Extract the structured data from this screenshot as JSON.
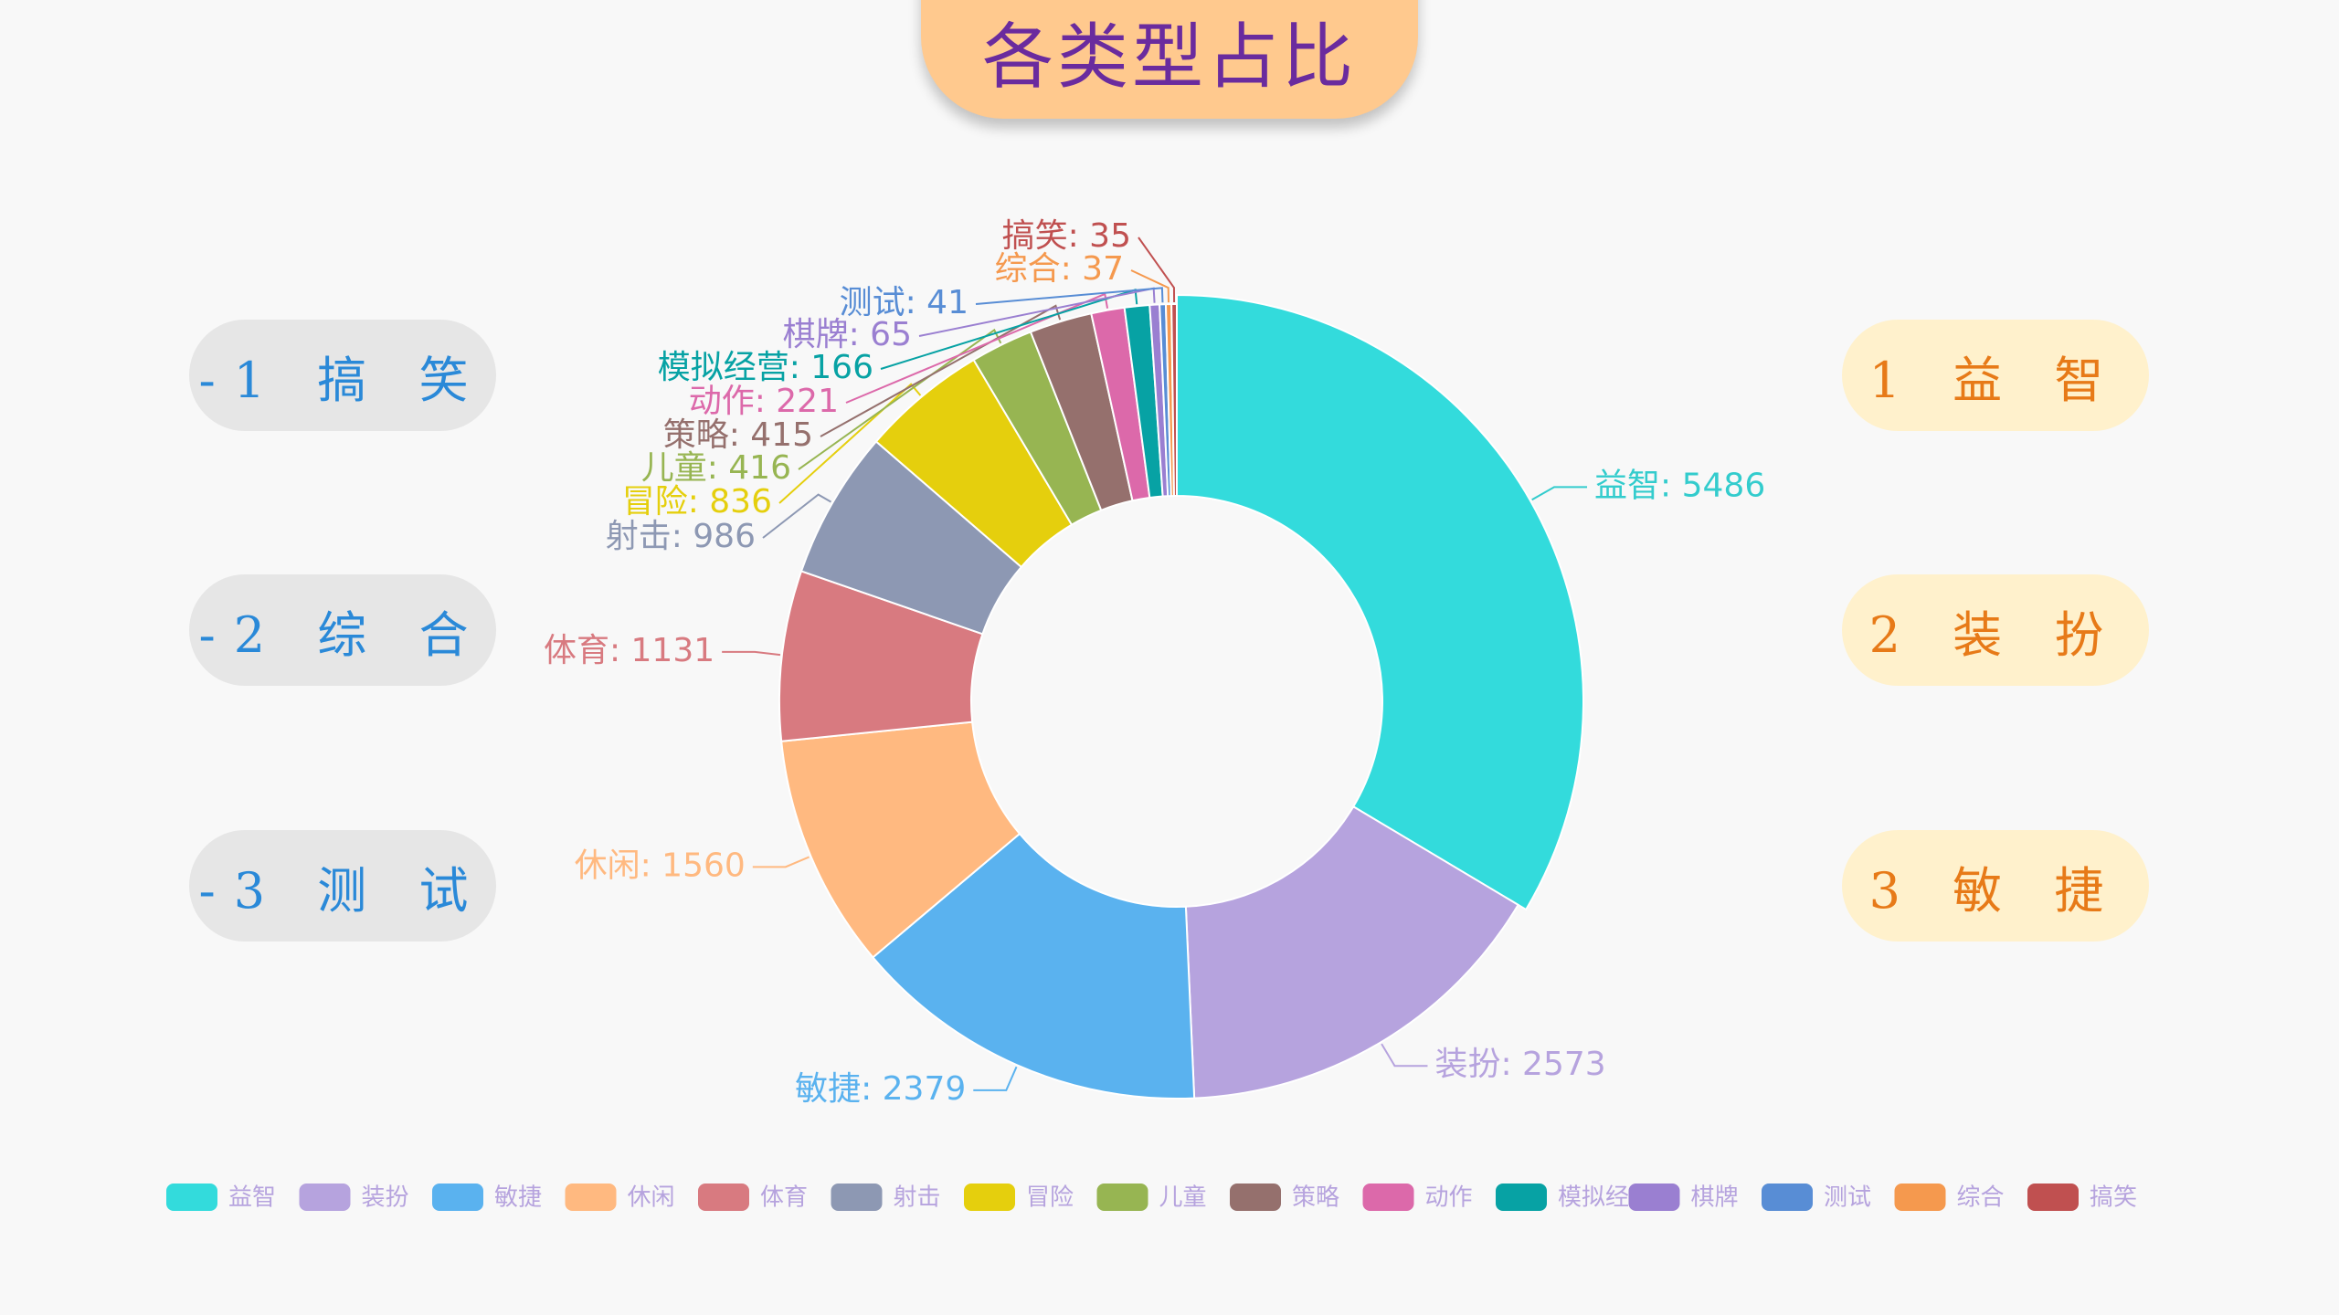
{
  "title": "各类型占比",
  "left_buttons": [
    {
      "text": "-1 搞 笑"
    },
    {
      "text": "-2 综 合"
    },
    {
      "text": "-3 测 试"
    }
  ],
  "right_buttons": [
    {
      "text": "1 益 智"
    },
    {
      "text": "2 装 扮"
    },
    {
      "text": "3 敏 捷"
    }
  ],
  "chart_data": {
    "type": "pie",
    "categories": [
      "益智",
      "装扮",
      "敏捷",
      "休闲",
      "体育",
      "射击",
      "冒险",
      "儿童",
      "策略",
      "动作",
      "模拟经营",
      "棋牌",
      "测试",
      "综合",
      "搞笑"
    ],
    "values": [
      5486,
      2573,
      2379,
      1560,
      1131,
      986,
      836,
      416,
      415,
      221,
      166,
      65,
      41,
      37,
      35
    ],
    "colors": [
      "#33dbdc",
      "#b6a3de",
      "#5ab2ef",
      "#ffb980",
      "#d87a80",
      "#8d98b3",
      "#e5cf0d",
      "#97b552",
      "#95706d",
      "#dc69aa",
      "#07a2a4",
      "#9a7fd1",
      "#588dd5",
      "#f5994e",
      "#c05050"
    ],
    "label_colors": [
      "#33cccd",
      "#b6a3de",
      "#5ab2ef",
      "#ffb980",
      "#d87a80",
      "#8d98b3",
      "#e5cf0d",
      "#97b552",
      "#95706d",
      "#dc69aa",
      "#07a2a4",
      "#9a7fd1",
      "#588dd5",
      "#f5994e",
      "#c05050"
    ],
    "donut": true,
    "legend_position": "bottom",
    "highlighted_slice": "益智"
  }
}
